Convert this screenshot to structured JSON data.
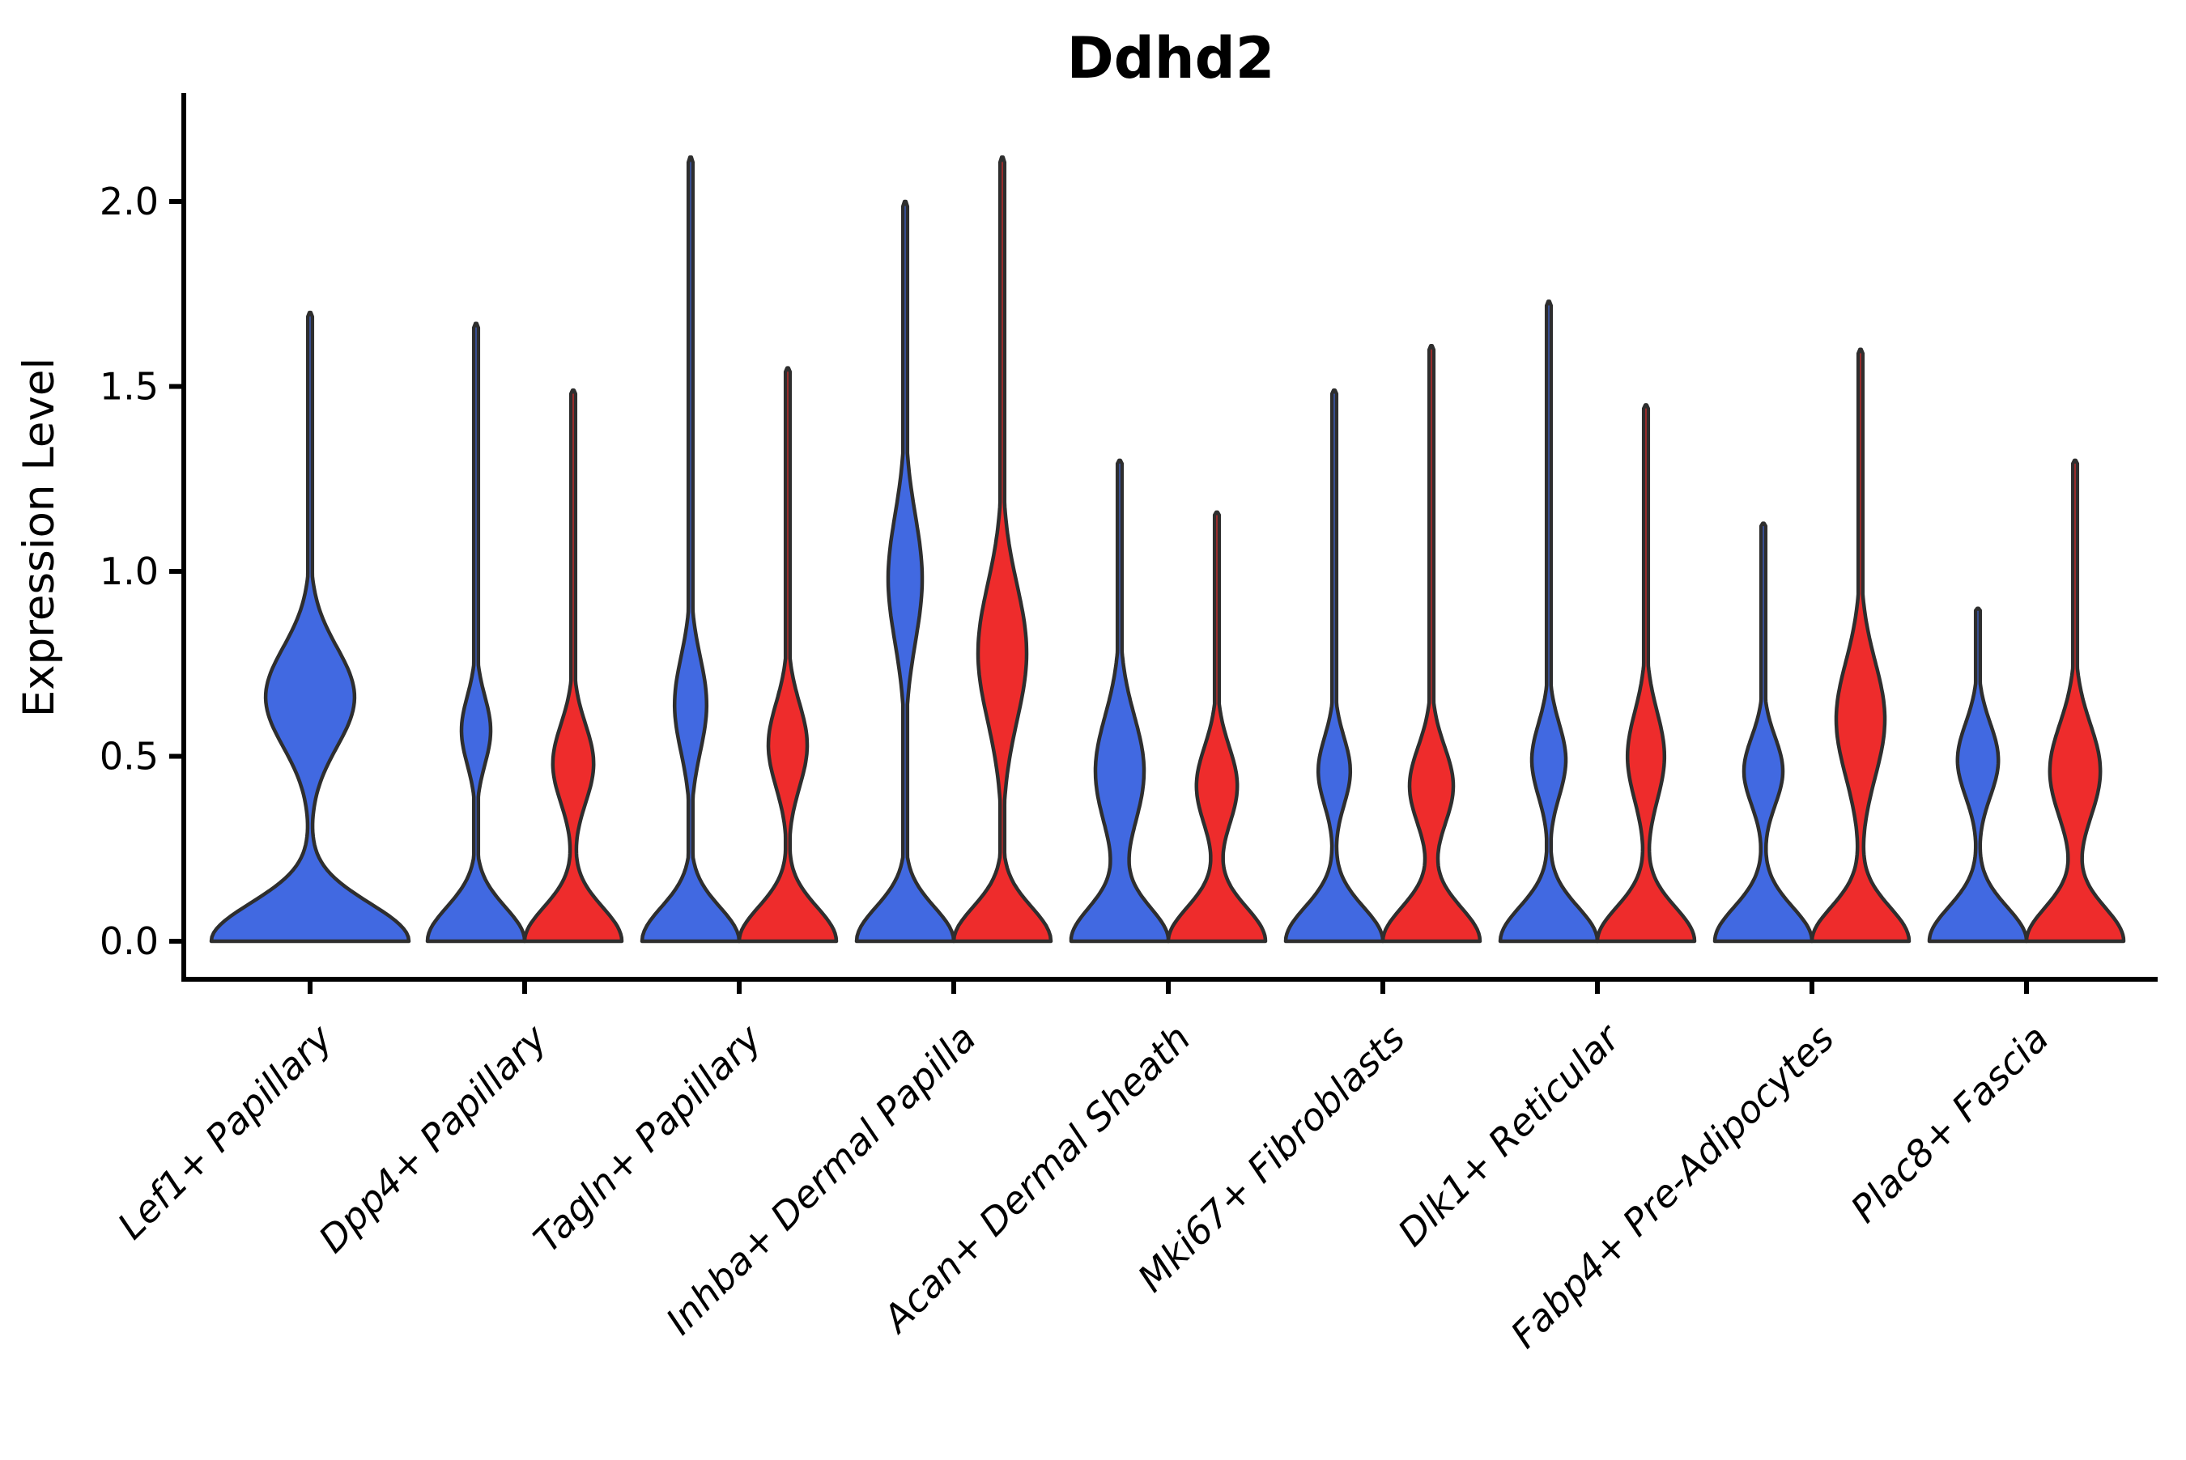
{
  "title": "Ddhd2",
  "y_axis": {
    "label": "Expression Level",
    "tick_labels": [
      "0.0",
      "0.5",
      "1.0",
      "1.5",
      "2.0"
    ],
    "tick_values": [
      0.0,
      0.5,
      1.0,
      1.5,
      2.0
    ]
  },
  "chart_data": {
    "type": "violin",
    "title": "Ddhd2",
    "xlabel": "",
    "ylabel": "Expression Level",
    "ylim": [
      0,
      2.29
    ],
    "grid": false,
    "legend": "none",
    "colors": {
      "blue": "#4169E1",
      "red": "#EE2C2C",
      "outline": "#2E2E2E"
    },
    "categories": [
      "Lef1+ Papillary",
      "Dpp4+ Papillary",
      "Tagln+ Papillary",
      "Inhba+ Dermal Papilla",
      "Acan+ Dermal Sheath",
      "Mki67+ Fibroblasts",
      "Dlk1+ Reticular",
      "Fabp4+ Pre-Adipocytes",
      "Plac8+ Fascia"
    ],
    "series": [
      {
        "category": "Lef1+ Papillary",
        "violins": [
          {
            "group": "blue",
            "max": 1.7,
            "bulge_center": 0.66,
            "bulge_sigma": 0.19,
            "bulge_amp": 0.45,
            "width": "full"
          }
        ]
      },
      {
        "category": "Dpp4+ Papillary",
        "violins": [
          {
            "group": "blue",
            "max": 1.67,
            "bulge_center": 0.57,
            "bulge_sigma": 0.13,
            "bulge_amp": 0.3,
            "width": "half"
          },
          {
            "group": "red",
            "max": 1.49,
            "bulge_center": 0.48,
            "bulge_sigma": 0.15,
            "bulge_amp": 0.42,
            "width": "half"
          }
        ]
      },
      {
        "category": "Tagln+ Papillary",
        "violins": [
          {
            "group": "blue",
            "max": 2.12,
            "bulge_center": 0.64,
            "bulge_sigma": 0.18,
            "bulge_amp": 0.33,
            "width": "half"
          },
          {
            "group": "red",
            "max": 1.55,
            "bulge_center": 0.53,
            "bulge_sigma": 0.16,
            "bulge_amp": 0.4,
            "width": "half"
          }
        ]
      },
      {
        "category": "Inhba+ Dermal Papilla",
        "violins": [
          {
            "group": "blue",
            "max": 2.0,
            "bulge_center": 0.98,
            "bulge_sigma": 0.24,
            "bulge_amp": 0.35,
            "width": "half"
          },
          {
            "group": "red",
            "max": 2.12,
            "bulge_center": 0.78,
            "bulge_sigma": 0.26,
            "bulge_amp": 0.5,
            "width": "half"
          }
        ]
      },
      {
        "category": "Acan+ Dermal Sheath",
        "violins": [
          {
            "group": "blue",
            "max": 1.3,
            "bulge_center": 0.46,
            "bulge_sigma": 0.21,
            "bulge_amp": 0.5,
            "width": "half"
          },
          {
            "group": "red",
            "max": 1.16,
            "bulge_center": 0.42,
            "bulge_sigma": 0.15,
            "bulge_amp": 0.42,
            "width": "half"
          }
        ]
      },
      {
        "category": "Mki67+ Fibroblasts",
        "violins": [
          {
            "group": "blue",
            "max": 1.49,
            "bulge_center": 0.46,
            "bulge_sigma": 0.13,
            "bulge_amp": 0.33,
            "width": "half"
          },
          {
            "group": "red",
            "max": 1.61,
            "bulge_center": 0.42,
            "bulge_sigma": 0.15,
            "bulge_amp": 0.45,
            "width": "half"
          }
        ]
      },
      {
        "category": "Dlk1+ Reticular",
        "violins": [
          {
            "group": "blue",
            "max": 1.73,
            "bulge_center": 0.49,
            "bulge_sigma": 0.14,
            "bulge_amp": 0.35,
            "width": "half"
          },
          {
            "group": "red",
            "max": 1.45,
            "bulge_center": 0.5,
            "bulge_sigma": 0.17,
            "bulge_amp": 0.38,
            "width": "half"
          }
        ]
      },
      {
        "category": "Fabp4+ Pre-Adipocytes",
        "violins": [
          {
            "group": "blue",
            "max": 1.13,
            "bulge_center": 0.46,
            "bulge_sigma": 0.13,
            "bulge_amp": 0.4,
            "width": "half"
          },
          {
            "group": "red",
            "max": 1.6,
            "bulge_center": 0.6,
            "bulge_sigma": 0.22,
            "bulge_amp": 0.5,
            "width": "half"
          }
        ]
      },
      {
        "category": "Plac8+ Fascia",
        "violins": [
          {
            "group": "blue",
            "max": 0.9,
            "bulge_center": 0.49,
            "bulge_sigma": 0.14,
            "bulge_amp": 0.42,
            "width": "half"
          },
          {
            "group": "red",
            "max": 1.3,
            "bulge_center": 0.46,
            "bulge_sigma": 0.18,
            "bulge_amp": 0.52,
            "width": "half"
          }
        ]
      }
    ]
  }
}
